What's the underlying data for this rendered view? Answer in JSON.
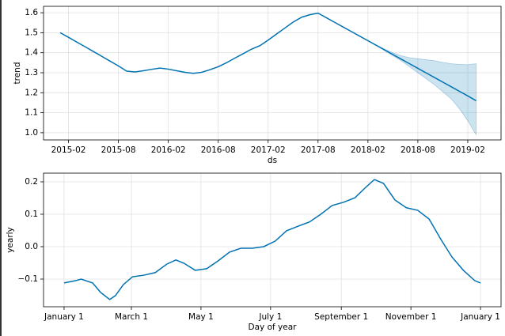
{
  "chart_data": [
    {
      "type": "line",
      "ylabel": "trend",
      "xlabel": "ds",
      "color": "#0072b2",
      "band_color": "#0072b2",
      "grid": true,
      "x": [
        "2015-01",
        "2015-02",
        "2015-03",
        "2015-04",
        "2015-05",
        "2015-06",
        "2015-07",
        "2015-08",
        "2015-09",
        "2015-10",
        "2015-11",
        "2015-12",
        "2016-01",
        "2016-02",
        "2016-03",
        "2016-04",
        "2016-05",
        "2016-06",
        "2016-07",
        "2016-08",
        "2016-09",
        "2016-10",
        "2016-11",
        "2016-12",
        "2017-01",
        "2017-02",
        "2017-03",
        "2017-04",
        "2017-05",
        "2017-06",
        "2017-07",
        "2017-08",
        "2017-09",
        "2017-10",
        "2017-11",
        "2017-12",
        "2018-01",
        "2018-02",
        "2018-03",
        "2018-04",
        "2018-05",
        "2018-06",
        "2018-07",
        "2018-08",
        "2018-09",
        "2018-10",
        "2018-11",
        "2018-12",
        "2019-01",
        "2019-02",
        "2019-03"
      ],
      "values": [
        1.5,
        1.477,
        1.453,
        1.43,
        1.406,
        1.382,
        1.358,
        1.334,
        1.308,
        1.304,
        1.31,
        1.317,
        1.323,
        1.318,
        1.31,
        1.302,
        1.297,
        1.302,
        1.315,
        1.33,
        1.35,
        1.373,
        1.395,
        1.418,
        1.435,
        1.463,
        1.493,
        1.523,
        1.553,
        1.577,
        1.59,
        1.598,
        1.575,
        1.552,
        1.529,
        1.506,
        1.483,
        1.46,
        1.437,
        1.414,
        1.391,
        1.368,
        1.345,
        1.322,
        1.299,
        1.276,
        1.253,
        1.23,
        1.207,
        1.184,
        1.16
      ],
      "lower": [
        null,
        null,
        null,
        null,
        null,
        null,
        null,
        null,
        null,
        null,
        null,
        null,
        null,
        null,
        null,
        null,
        null,
        null,
        null,
        null,
        null,
        null,
        null,
        null,
        null,
        null,
        null,
        null,
        null,
        null,
        null,
        null,
        null,
        null,
        null,
        null,
        null,
        null,
        1.437,
        1.41,
        1.385,
        1.36,
        1.33,
        1.3,
        1.27,
        1.24,
        1.205,
        1.17,
        1.12,
        1.06,
        0.99
      ],
      "upper": [
        null,
        null,
        null,
        null,
        null,
        null,
        null,
        null,
        null,
        null,
        null,
        null,
        null,
        null,
        null,
        null,
        null,
        null,
        null,
        null,
        null,
        null,
        null,
        null,
        null,
        null,
        null,
        null,
        null,
        null,
        null,
        null,
        null,
        null,
        null,
        null,
        null,
        null,
        1.437,
        1.418,
        1.4,
        1.385,
        1.375,
        1.37,
        1.365,
        1.36,
        1.352,
        1.345,
        1.342,
        1.34,
        1.345
      ],
      "xlim": [
        "2014-11",
        "2019-06"
      ],
      "xticks": [
        "2015-02",
        "2015-08",
        "2016-02",
        "2016-08",
        "2017-02",
        "2017-08",
        "2018-02",
        "2018-08",
        "2019-02"
      ],
      "ylim": [
        0.964,
        1.632
      ],
      "yticks": [
        {
          "value": 1.0,
          "label": "1.0"
        },
        1.1,
        1.2,
        1.3,
        1.4,
        1.5,
        1.6
      ]
    },
    {
      "type": "line",
      "ylabel": "yearly",
      "xlabel": "Day of year",
      "color": "#0072b2",
      "grid": true,
      "x": [
        0,
        10,
        15,
        25,
        32,
        40,
        45,
        52,
        60,
        70,
        80,
        90,
        98,
        105,
        115,
        125,
        135,
        145,
        155,
        165,
        175,
        185,
        195,
        205,
        215,
        225,
        235,
        245,
        255,
        265,
        272,
        280,
        290,
        300,
        310,
        320,
        330,
        340,
        350,
        360,
        365
      ],
      "values": [
        -0.112,
        -0.105,
        -0.1,
        -0.112,
        -0.141,
        -0.163,
        -0.151,
        -0.117,
        -0.093,
        -0.088,
        -0.08,
        -0.054,
        -0.041,
        -0.051,
        -0.073,
        -0.068,
        -0.044,
        -0.017,
        -0.005,
        -0.005,
        0.0,
        0.017,
        0.049,
        0.063,
        0.076,
        0.1,
        0.127,
        0.137,
        0.151,
        0.185,
        0.207,
        0.195,
        0.144,
        0.12,
        0.112,
        0.085,
        0.024,
        -0.032,
        -0.073,
        -0.105,
        -0.112
      ],
      "xlim": [
        -18,
        383
      ],
      "xticks": [
        {
          "value": 0,
          "label": "January 1"
        },
        {
          "value": 59,
          "label": "March 1"
        },
        {
          "value": 120,
          "label": "May 1"
        },
        {
          "value": 181,
          "label": "July 1"
        },
        {
          "value": 243,
          "label": "September 1"
        },
        {
          "value": 304,
          "label": "November 1"
        },
        {
          "value": 365,
          "label": "January 1"
        }
      ],
      "ylim": [
        -0.1854,
        0.2268
      ],
      "yticks": [
        {
          "value": -0.1,
          "label": "−0.1"
        },
        {
          "value": 0.0,
          "label": "0.0"
        },
        0.1,
        0.2
      ]
    }
  ]
}
